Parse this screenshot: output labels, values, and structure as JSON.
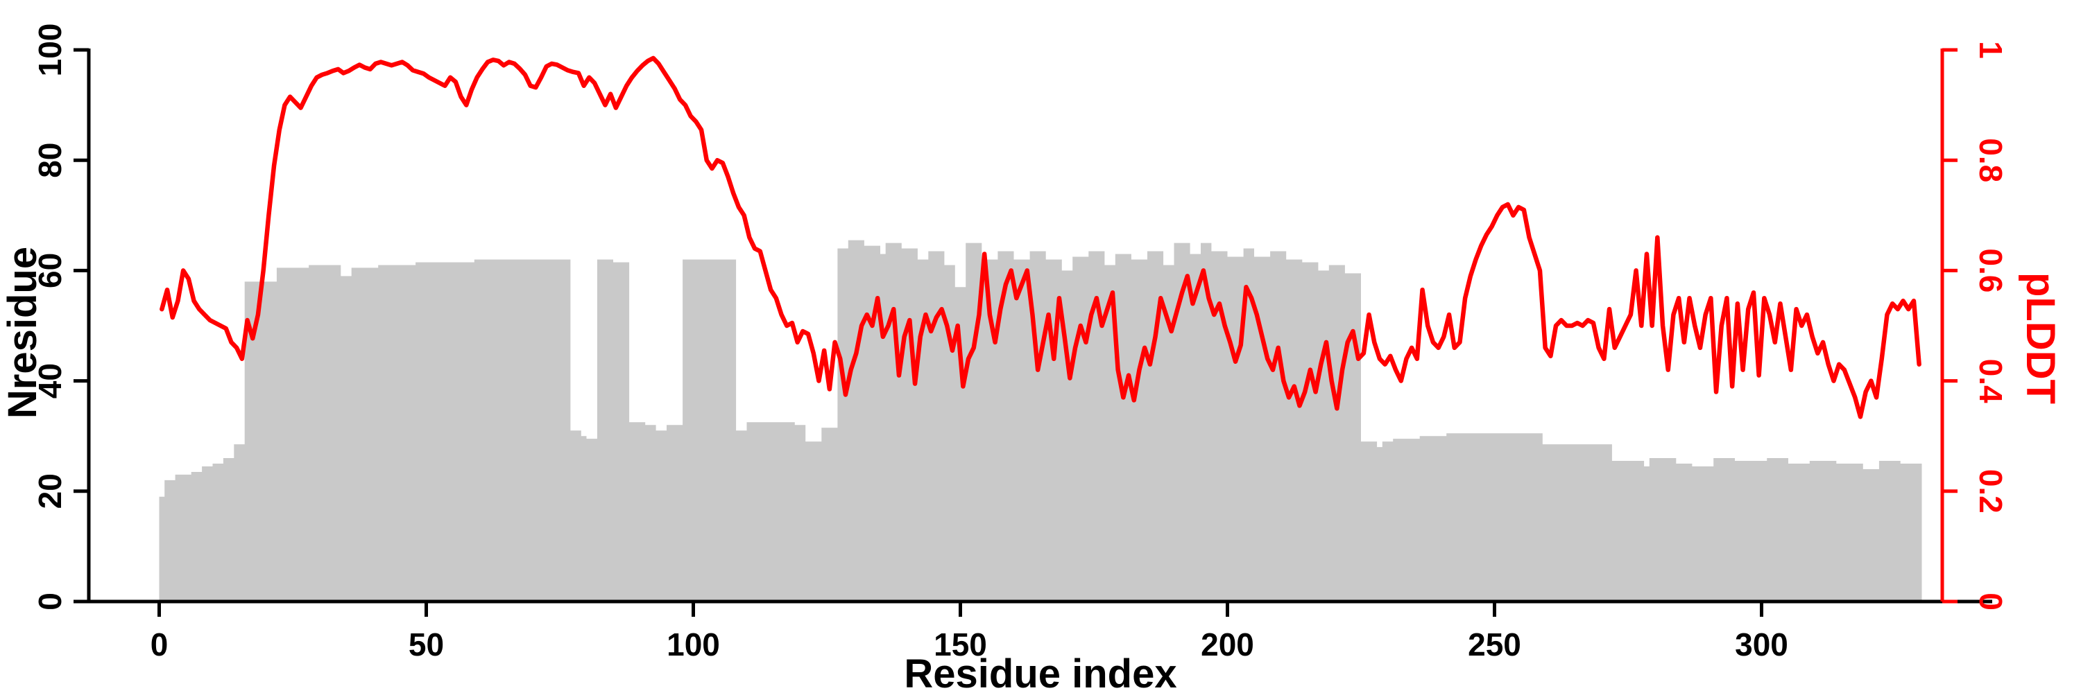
{
  "chart_data": {
    "type": "bar",
    "title": "",
    "xlabel": "Residue index",
    "ylabel_left": "Nresidue",
    "ylabel_right": "pLDDT",
    "x_ticks": [
      0,
      50,
      100,
      150,
      200,
      250,
      300
    ],
    "y_ticks_left": [
      0,
      20,
      40,
      60,
      80,
      100
    ],
    "y_ticks_right_labels": [
      "0",
      "0.2",
      "0.4",
      "0.6",
      "0.8",
      "1"
    ],
    "y_ticks_right": [
      0,
      0.2,
      0.4,
      0.6,
      0.8,
      1
    ],
    "ylim_left": [
      0,
      100
    ],
    "ylim_right": [
      0,
      1
    ],
    "x_start": 0,
    "x_step": 1,
    "grid": false,
    "legend": "none",
    "colors": {
      "bar": "#c9c9c9",
      "line": "#ff0000",
      "axis": "#000000",
      "right_axis": "#ff0000"
    },
    "series": [
      {
        "name": "Nresidue",
        "kind": "bar",
        "axis": "left",
        "values": [
          19,
          22,
          22,
          23,
          23,
          23,
          23.5,
          23.5,
          24.5,
          24.5,
          25,
          25,
          26,
          26,
          28.5,
          28.5,
          58,
          58,
          58,
          58,
          58,
          58,
          60.5,
          60.5,
          60.5,
          60.5,
          60.5,
          60.5,
          61,
          61,
          61,
          61,
          61,
          61,
          59,
          59,
          60.5,
          60.5,
          60.5,
          60.5,
          60.5,
          61,
          61,
          61,
          61,
          61,
          61,
          61,
          61.5,
          61.5,
          61.5,
          61.5,
          61.5,
          61.5,
          61.5,
          61.5,
          61.5,
          61.5,
          61.5,
          62,
          62,
          62,
          62,
          62,
          62,
          62,
          62,
          62,
          62,
          62,
          62,
          62,
          62,
          62,
          62,
          62,
          62,
          31,
          31,
          30,
          29.5,
          29.5,
          62,
          62,
          62,
          61.5,
          61.5,
          61.5,
          32.5,
          32.5,
          32.5,
          32,
          32,
          31,
          31,
          32,
          32,
          32,
          62,
          62,
          62,
          62,
          62,
          62,
          62,
          62,
          62,
          62,
          31,
          31,
          32.5,
          32.5,
          32.5,
          32.5,
          32.5,
          32.5,
          32.5,
          32.5,
          32.5,
          32,
          32,
          29,
          29,
          29,
          31.5,
          31.5,
          31.5,
          64,
          64,
          65.5,
          65.5,
          65.5,
          64.5,
          64.5,
          64.5,
          63,
          65,
          65,
          65,
          64,
          64,
          64,
          62,
          62,
          63.5,
          63.5,
          63.5,
          61,
          61,
          57,
          57,
          65,
          65,
          65,
          62,
          62,
          62,
          63.5,
          63.5,
          63.5,
          62,
          62,
          62,
          63.5,
          63.5,
          63.5,
          62,
          62,
          62,
          60,
          60,
          62.5,
          62.5,
          62.5,
          63.5,
          63.5,
          63.5,
          61,
          61,
          63,
          63,
          63,
          62,
          62,
          62,
          63.5,
          63.5,
          63.5,
          61,
          61,
          65,
          65,
          65,
          63,
          63,
          65,
          65,
          63.5,
          63.5,
          63.5,
          62.5,
          62.5,
          62.5,
          64,
          64,
          62.5,
          62.5,
          62.5,
          63.5,
          63.5,
          63.5,
          62,
          62,
          62,
          61.5,
          61.5,
          61.5,
          60,
          60,
          61,
          61,
          61,
          59.5,
          59.5,
          59.5,
          29,
          29,
          29,
          28,
          29,
          29,
          29.5,
          29.5,
          29.5,
          29.5,
          29.5,
          30,
          30,
          30,
          30,
          30,
          30.5,
          30.5,
          30.5,
          30.5,
          30.5,
          30.5,
          30.5,
          30.5,
          30.5,
          30.5,
          30.5,
          30.5,
          30.5,
          30.5,
          30.5,
          30.5,
          30.5,
          30.5,
          28.5,
          28.5,
          28.5,
          28.5,
          28.5,
          28.5,
          28.5,
          28.5,
          28.5,
          28.5,
          28.5,
          28.5,
          28.5,
          25.5,
          25.5,
          25.5,
          25.5,
          25.5,
          25.5,
          24.5,
          26,
          26,
          26,
          26,
          26,
          25,
          25,
          25,
          24.5,
          24.5,
          24.5,
          24.5,
          26,
          26,
          26,
          26,
          25.5,
          25.5,
          25.5,
          25.5,
          25.5,
          25.5,
          26,
          26,
          26,
          26,
          25,
          25,
          25,
          25,
          25.5,
          25.5,
          25.5,
          25.5,
          25.5,
          25,
          25,
          25,
          25,
          25,
          24,
          24,
          24,
          25.5,
          25.5,
          25.5,
          25.5,
          25,
          25,
          25,
          25
        ]
      },
      {
        "name": "pLDDT",
        "kind": "line",
        "axis": "right",
        "values": [
          0.53,
          0.565,
          0.515,
          0.545,
          0.6,
          0.585,
          0.545,
          0.53,
          0.52,
          0.51,
          0.505,
          0.5,
          0.495,
          0.47,
          0.46,
          0.44,
          0.51,
          0.477,
          0.52,
          0.6,
          0.7,
          0.79,
          0.855,
          0.9,
          0.915,
          0.905,
          0.895,
          0.915,
          0.935,
          0.95,
          0.955,
          0.958,
          0.962,
          0.965,
          0.958,
          0.962,
          0.968,
          0.973,
          0.968,
          0.965,
          0.975,
          0.978,
          0.975,
          0.972,
          0.975,
          0.978,
          0.972,
          0.963,
          0.96,
          0.957,
          0.95,
          0.945,
          0.94,
          0.935,
          0.95,
          0.942,
          0.915,
          0.9,
          0.928,
          0.95,
          0.965,
          0.978,
          0.982,
          0.98,
          0.972,
          0.978,
          0.975,
          0.966,
          0.955,
          0.935,
          0.932,
          0.95,
          0.97,
          0.975,
          0.973,
          0.968,
          0.963,
          0.96,
          0.958,
          0.935,
          0.95,
          0.94,
          0.92,
          0.9,
          0.92,
          0.895,
          0.915,
          0.935,
          0.95,
          0.962,
          0.972,
          0.98,
          0.985,
          0.975,
          0.96,
          0.945,
          0.93,
          0.91,
          0.9,
          0.88,
          0.87,
          0.855,
          0.8,
          0.785,
          0.8,
          0.795,
          0.77,
          0.74,
          0.715,
          0.7,
          0.66,
          0.64,
          0.635,
          0.6,
          0.565,
          0.55,
          0.52,
          0.5,
          0.505,
          0.47,
          0.49,
          0.485,
          0.45,
          0.4,
          0.455,
          0.385,
          0.47,
          0.44,
          0.375,
          0.42,
          0.45,
          0.5,
          0.52,
          0.5,
          0.55,
          0.48,
          0.5,
          0.53,
          0.41,
          0.48,
          0.51,
          0.395,
          0.48,
          0.52,
          0.49,
          0.515,
          0.53,
          0.5,
          0.455,
          0.5,
          0.39,
          0.44,
          0.46,
          0.52,
          0.63,
          0.52,
          0.47,
          0.53,
          0.575,
          0.6,
          0.55,
          0.575,
          0.6,
          0.52,
          0.42,
          0.47,
          0.52,
          0.44,
          0.55,
          0.48,
          0.405,
          0.46,
          0.5,
          0.47,
          0.52,
          0.55,
          0.5,
          0.53,
          0.56,
          0.42,
          0.37,
          0.41,
          0.365,
          0.42,
          0.46,
          0.43,
          0.48,
          0.55,
          0.52,
          0.49,
          0.525,
          0.56,
          0.59,
          0.54,
          0.57,
          0.6,
          0.55,
          0.52,
          0.54,
          0.5,
          0.47,
          0.435,
          0.465,
          0.57,
          0.55,
          0.52,
          0.48,
          0.44,
          0.42,
          0.46,
          0.4,
          0.37,
          0.39,
          0.355,
          0.38,
          0.42,
          0.38,
          0.43,
          0.47,
          0.4,
          0.35,
          0.42,
          0.47,
          0.49,
          0.44,
          0.45,
          0.52,
          0.47,
          0.44,
          0.43,
          0.445,
          0.42,
          0.4,
          0.44,
          0.46,
          0.44,
          0.565,
          0.5,
          0.47,
          0.46,
          0.48,
          0.52,
          0.46,
          0.47,
          0.55,
          0.59,
          0.62,
          0.645,
          0.665,
          0.68,
          0.7,
          0.715,
          0.72,
          0.7,
          0.715,
          0.71,
          0.66,
          0.63,
          0.6,
          0.46,
          0.445,
          0.5,
          0.51,
          0.5,
          0.5,
          0.505,
          0.5,
          0.51,
          0.505,
          0.46,
          0.44,
          0.53,
          0.46,
          0.48,
          0.5,
          0.52,
          0.6,
          0.5,
          0.63,
          0.5,
          0.66,
          0.5,
          0.42,
          0.52,
          0.55,
          0.47,
          0.55,
          0.5,
          0.46,
          0.52,
          0.55,
          0.38,
          0.5,
          0.55,
          0.39,
          0.54,
          0.42,
          0.53,
          0.56,
          0.41,
          0.55,
          0.52,
          0.47,
          0.54,
          0.48,
          0.42,
          0.53,
          0.5,
          0.52,
          0.48,
          0.45,
          0.47,
          0.43,
          0.4,
          0.43,
          0.42,
          0.395,
          0.37,
          0.335,
          0.38,
          0.4,
          0.37,
          0.44,
          0.52,
          0.54,
          0.53,
          0.545,
          0.53,
          0.545,
          0.43
        ]
      }
    ]
  }
}
